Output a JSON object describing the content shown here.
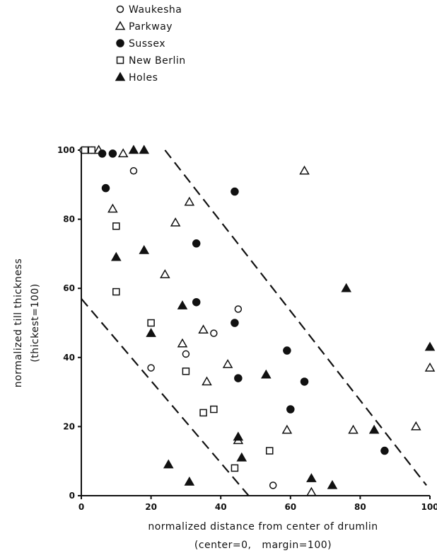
{
  "chart_data": {
    "type": "scatter",
    "xlabel": "normalized distance from center of drumlin",
    "xlabel2": "(center=0,   margin=100)",
    "ylabel": "normalized till thickness",
    "ylabel2": "(thickest=100)",
    "xlim": [
      0,
      100
    ],
    "ylim": [
      0,
      100
    ],
    "xticks": [
      0,
      20,
      40,
      60,
      80,
      100
    ],
    "yticks": [
      0,
      20,
      40,
      60,
      80,
      100
    ],
    "grid": false,
    "legend_position": "top-left, above plot",
    "series": [
      {
        "name": "Waukesha",
        "marker": "circle-open",
        "x": [
          0.5,
          2,
          3,
          15,
          20,
          30,
          38,
          45,
          55
        ],
        "y": [
          100,
          100,
          100,
          94,
          37,
          41,
          47,
          54,
          3
        ]
      },
      {
        "name": "Parkway",
        "marker": "triangle-open",
        "x": [
          5,
          9,
          12,
          27,
          24,
          29,
          31,
          35,
          36,
          42,
          45,
          59,
          64,
          66,
          78,
          96,
          100
        ],
        "y": [
          100,
          83,
          99,
          79,
          64,
          44,
          85,
          48,
          33,
          38,
          16,
          19,
          94,
          1,
          19,
          20,
          37
        ]
      },
      {
        "name": "Sussex",
        "marker": "circle-filled",
        "x": [
          6,
          7,
          9,
          33,
          33,
          44,
          44,
          45,
          59,
          60,
          64,
          87
        ],
        "y": [
          99,
          89,
          99,
          73,
          56,
          88,
          50,
          34,
          42,
          25,
          33,
          13
        ]
      },
      {
        "name": "New Berlin",
        "marker": "square-open",
        "x": [
          1,
          3,
          10,
          10,
          20,
          30,
          35,
          38,
          44,
          54
        ],
        "y": [
          100,
          100,
          78,
          59,
          50,
          36,
          24,
          25,
          8,
          13
        ]
      },
      {
        "name": "Holes",
        "marker": "triangle-filled",
        "x": [
          15,
          18,
          18,
          10,
          20,
          29,
          25,
          31,
          45,
          46,
          53,
          66,
          72,
          76,
          84,
          100
        ],
        "y": [
          100,
          100,
          71,
          69,
          47,
          55,
          9,
          4,
          17,
          11,
          35,
          5,
          3,
          60,
          19,
          43
        ]
      }
    ],
    "envelope_lines": [
      {
        "style": "dashed",
        "x": [
          0,
          48
        ],
        "y": [
          57,
          0
        ]
      },
      {
        "style": "dashed",
        "x": [
          24,
          99
        ],
        "y": [
          100,
          3
        ]
      }
    ]
  }
}
